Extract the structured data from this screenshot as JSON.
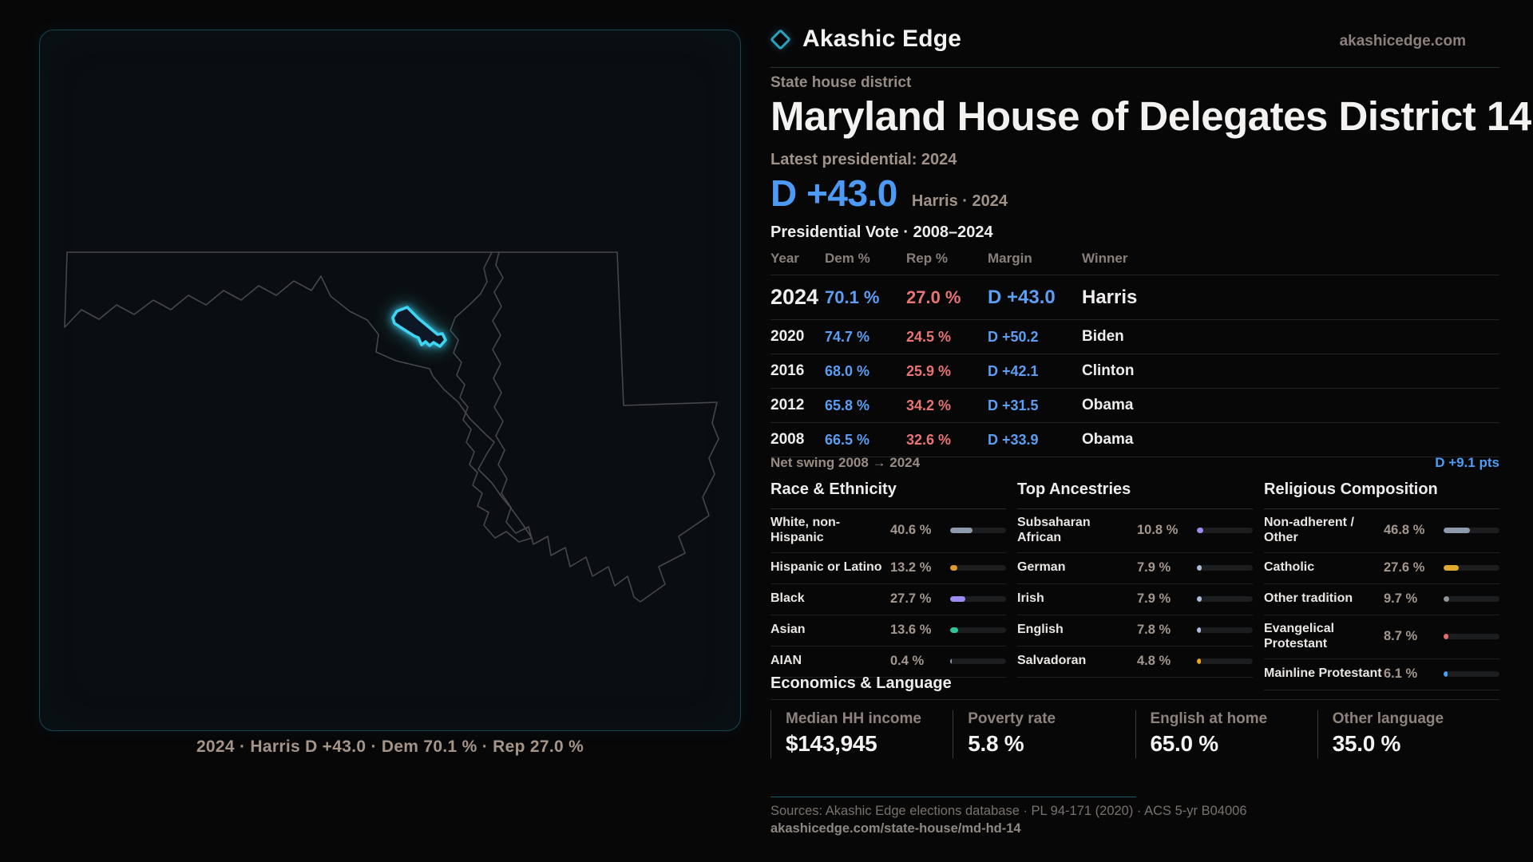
{
  "brand": {
    "name": "Akashic Edge",
    "site": "akashicedge.com"
  },
  "page": {
    "kicker": "State house district",
    "title": "Maryland House of Delegates District 14",
    "latest_label": "Latest presidential: 2024",
    "headline_margin": "D +43.0",
    "headline_context": "Harris · 2024",
    "table_title": "Presidential Vote · 2008–2024"
  },
  "map": {
    "caption": "2024 · Harris D +43.0 · Dem 70.1 % · Rep 27.0 %",
    "district_color": "#3fd4f2",
    "outline_color": "#45474c"
  },
  "vote_table": {
    "columns": [
      "Year",
      "Dem %",
      "Rep %",
      "Margin",
      "Winner"
    ],
    "rows": [
      {
        "year": "2024",
        "dem": "70.1 %",
        "rep": "27.0 %",
        "margin": "D +43.0",
        "winner": "Harris",
        "emphasis": true
      },
      {
        "year": "2020",
        "dem": "74.7 %",
        "rep": "24.5 %",
        "margin": "D +50.2",
        "winner": "Biden",
        "emphasis": false
      },
      {
        "year": "2016",
        "dem": "68.0 %",
        "rep": "25.9 %",
        "margin": "D +42.1",
        "winner": "Clinton",
        "emphasis": false
      },
      {
        "year": "2012",
        "dem": "65.8 %",
        "rep": "34.2 %",
        "margin": "D +31.5",
        "winner": "Obama",
        "emphasis": false
      },
      {
        "year": "2008",
        "dem": "66.5 %",
        "rep": "32.6 %",
        "margin": "D +33.9",
        "winner": "Obama",
        "emphasis": false
      }
    ],
    "net_swing_label": "Net swing 2008 → 2024",
    "net_swing_value": "D +9.1 pts"
  },
  "demographics": {
    "sections": [
      {
        "title": "Race & Ethnicity",
        "rows": [
          {
            "label": "White, non-Hispanic",
            "value": "40.6 %",
            "pct": 40.6,
            "color": "#8e99ab"
          },
          {
            "label": "Hispanic or Latino",
            "value": "13.2 %",
            "pct": 13.2,
            "color": "#e09a33"
          },
          {
            "label": "Black",
            "value": "27.7 %",
            "pct": 27.7,
            "color": "#9b8df1"
          },
          {
            "label": "Asian",
            "value": "13.6 %",
            "pct": 13.6,
            "color": "#2fc49a"
          },
          {
            "label": "AIAN",
            "value": "0.4 %",
            "pct": 0.4,
            "color": "#8e99ab"
          }
        ]
      },
      {
        "title": "Top Ancestries",
        "rows": [
          {
            "label": "Subsaharan African",
            "value": "10.8 %",
            "pct": 10.8,
            "color": "#9b8df1"
          },
          {
            "label": "German",
            "value": "7.9 %",
            "pct": 7.9,
            "color": "#a9bedd"
          },
          {
            "label": "Irish",
            "value": "7.9 %",
            "pct": 7.9,
            "color": "#a9bedd"
          },
          {
            "label": "English",
            "value": "7.8 %",
            "pct": 7.8,
            "color": "#a9bedd"
          },
          {
            "label": "Salvadoran",
            "value": "4.8 %",
            "pct": 4.8,
            "color": "#e8a71e"
          }
        ]
      },
      {
        "title": "Religious Composition",
        "rows": [
          {
            "label": "Non-adherent / Other",
            "value": "46.8 %",
            "pct": 46.8,
            "color": "#8e99ab"
          },
          {
            "label": "Catholic",
            "value": "27.6 %",
            "pct": 27.6,
            "color": "#dfaa2e"
          },
          {
            "label": "Other tradition",
            "value": "9.7 %",
            "pct": 9.7,
            "color": "#8f9499"
          },
          {
            "label": "Evangelical Protestant",
            "value": "8.7 %",
            "pct": 8.7,
            "color": "#e56d6d"
          },
          {
            "label": "Mainline Protestant",
            "value": "6.1 %",
            "pct": 6.1,
            "color": "#4f9df5"
          }
        ]
      }
    ]
  },
  "economics": {
    "title": "Economics & Language",
    "stats": [
      {
        "label": "Median HH income",
        "value": "$143,945"
      },
      {
        "label": "Poverty rate",
        "value": "5.8 %"
      },
      {
        "label": "English at home",
        "value": "65.0 %"
      },
      {
        "label": "Other language",
        "value": "35.0 %"
      }
    ]
  },
  "footer": {
    "sources": "Sources: Akashic Edge elections database · PL 94-171 (2020) · ACS 5-yr B04006",
    "permalink": "akashicedge.com/state-house/md-hd-14"
  }
}
